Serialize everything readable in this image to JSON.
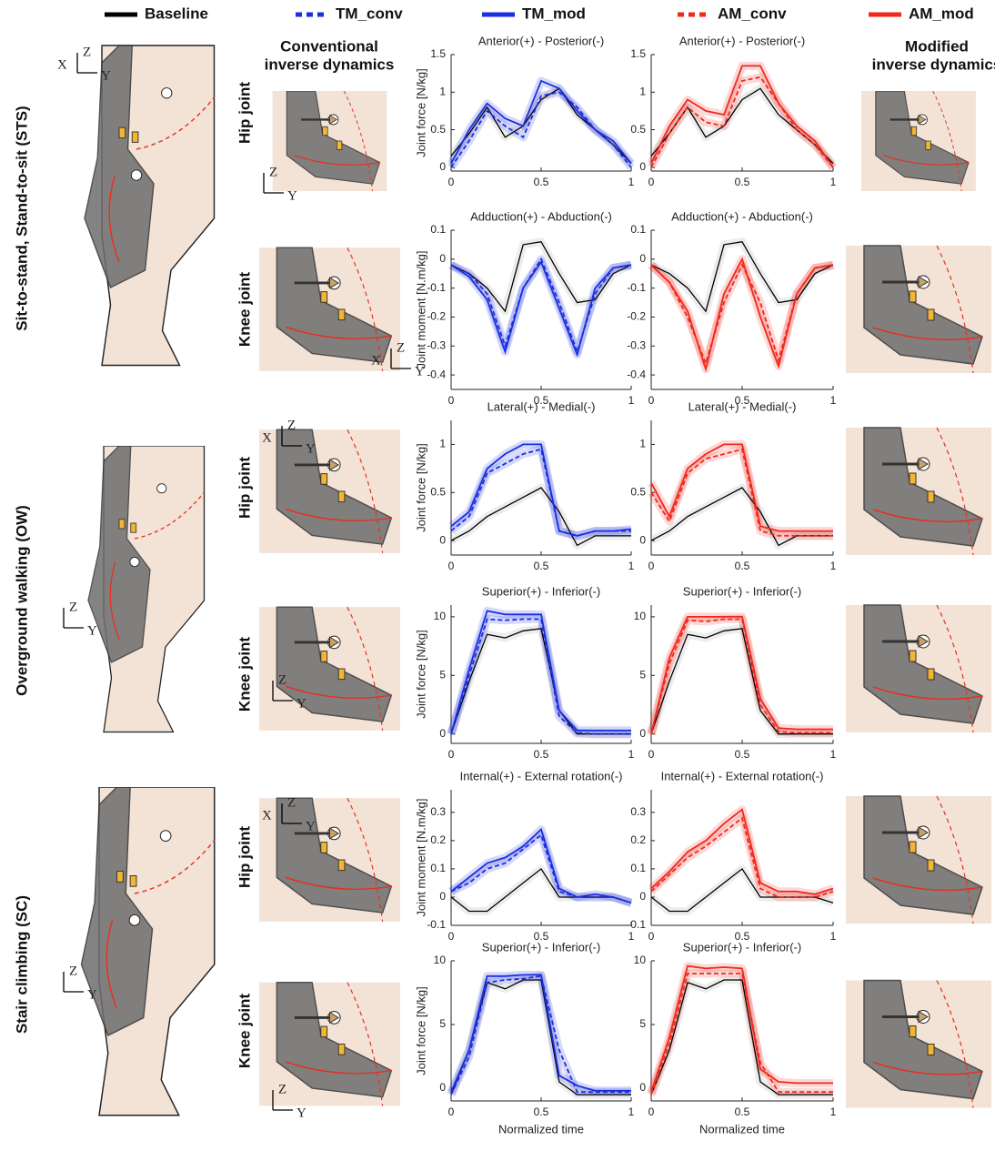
{
  "row_labels": [
    "Sit-to-stand, Stand-to-sit (STS)",
    "Overground walking (OW)",
    "Stair climbing (SC)"
  ],
  "column_headers": {
    "conventional": [
      "Conventional",
      "inverse dynamics"
    ],
    "modified": [
      "Modified",
      "inverse dynamics"
    ]
  },
  "joint_labels": [
    "Hip joint",
    "Knee joint",
    "Hip joint",
    "Knee joint",
    "Hip joint",
    "Knee joint"
  ],
  "axis_letters": {
    "x": "X",
    "y": "Y",
    "z": "Z"
  },
  "chart_data": [
    {
      "type": "line",
      "title": "Anterior(+) - Posterior(-)",
      "ylabel": "Joint force [N/kg]",
      "x": [
        0,
        0.1,
        0.2,
        0.3,
        0.4,
        0.5,
        0.6,
        0.7,
        0.8,
        0.9,
        1
      ],
      "xlim": [
        0,
        1
      ],
      "xticks": [
        0,
        0.5,
        1
      ],
      "ylim": [
        -0.05,
        1.5
      ],
      "yticks": [
        0,
        0.5,
        1,
        1.5
      ],
      "series": [
        {
          "name": "Baseline",
          "color": "#000000",
          "style": "solid",
          "values": [
            0.15,
            0.45,
            0.8,
            0.4,
            0.55,
            0.9,
            1.05,
            0.7,
            0.5,
            0.3,
            0.05
          ]
        },
        {
          "name": "TM_conv",
          "color": "#1a2fe0",
          "style": "dashed",
          "values": [
            0.0,
            0.35,
            0.75,
            0.55,
            0.4,
            0.95,
            1.0,
            0.8,
            0.5,
            0.3,
            0.0
          ]
        },
        {
          "name": "TM_mod",
          "color": "#1a2fe0",
          "style": "solid",
          "values": [
            0.05,
            0.5,
            0.85,
            0.65,
            0.55,
            1.15,
            1.05,
            0.75,
            0.5,
            0.35,
            0.05
          ]
        }
      ]
    },
    {
      "type": "line",
      "title": "Anterior(+) - Posterior(-)",
      "x": [
        0,
        0.1,
        0.2,
        0.3,
        0.4,
        0.5,
        0.6,
        0.7,
        0.8,
        0.9,
        1
      ],
      "xlim": [
        0,
        1
      ],
      "xticks": [
        0,
        0.5,
        1
      ],
      "ylim": [
        -0.05,
        1.5
      ],
      "yticks": [
        0,
        0.5,
        1,
        1.5
      ],
      "series": [
        {
          "name": "Baseline",
          "color": "#000000",
          "style": "solid",
          "values": [
            0.15,
            0.45,
            0.8,
            0.4,
            0.55,
            0.9,
            1.05,
            0.7,
            0.5,
            0.3,
            0.05
          ]
        },
        {
          "name": "AM_conv",
          "color": "#f0281e",
          "style": "dashed",
          "values": [
            0.0,
            0.45,
            0.8,
            0.6,
            0.55,
            1.15,
            1.2,
            0.85,
            0.5,
            0.3,
            0.0
          ]
        },
        {
          "name": "AM_mod",
          "color": "#f0281e",
          "style": "solid",
          "values": [
            0.05,
            0.55,
            0.9,
            0.75,
            0.7,
            1.35,
            1.35,
            0.85,
            0.55,
            0.35,
            0.0
          ]
        }
      ]
    },
    {
      "type": "line",
      "title": "Adduction(+) - Abduction(-)",
      "ylabel": "Joint moment [N.m/kg]",
      "x": [
        0,
        0.1,
        0.2,
        0.3,
        0.4,
        0.5,
        0.6,
        0.7,
        0.8,
        0.9,
        1
      ],
      "xlim": [
        0,
        1
      ],
      "xticks": [
        0,
        0.5,
        1
      ],
      "ylim": [
        -0.45,
        0.1
      ],
      "yticks": [
        0.1,
        0,
        -0.1,
        -0.2,
        -0.3,
        -0.4
      ],
      "series": [
        {
          "name": "Baseline",
          "color": "#000000",
          "style": "solid",
          "values": [
            -0.02,
            -0.05,
            -0.1,
            -0.18,
            0.05,
            0.06,
            -0.05,
            -0.15,
            -0.14,
            -0.05,
            -0.02
          ]
        },
        {
          "name": "TM_conv",
          "color": "#1a2fe0",
          "style": "dashed",
          "values": [
            -0.02,
            -0.05,
            -0.12,
            -0.3,
            -0.1,
            0.0,
            -0.15,
            -0.32,
            -0.12,
            -0.03,
            -0.02
          ]
        },
        {
          "name": "TM_mod",
          "color": "#1a2fe0",
          "style": "solid",
          "values": [
            -0.02,
            -0.06,
            -0.14,
            -0.32,
            -0.1,
            -0.01,
            -0.17,
            -0.33,
            -0.1,
            -0.03,
            -0.02
          ]
        }
      ]
    },
    {
      "type": "line",
      "title": "Adduction(+) - Abduction(-)",
      "x": [
        0,
        0.1,
        0.2,
        0.3,
        0.4,
        0.5,
        0.6,
        0.7,
        0.8,
        0.9,
        1
      ],
      "xlim": [
        0,
        1
      ],
      "xticks": [
        0,
        0.5,
        1
      ],
      "ylim": [
        -0.45,
        0.1
      ],
      "yticks": [
        0.1,
        0,
        -0.1,
        -0.2,
        -0.3,
        -0.4
      ],
      "series": [
        {
          "name": "Baseline",
          "color": "#000000",
          "style": "solid",
          "values": [
            -0.02,
            -0.05,
            -0.1,
            -0.18,
            0.05,
            0.06,
            -0.05,
            -0.15,
            -0.14,
            -0.05,
            -0.02
          ]
        },
        {
          "name": "AM_conv",
          "color": "#f0281e",
          "style": "dashed",
          "values": [
            -0.02,
            -0.08,
            -0.2,
            -0.36,
            -0.15,
            -0.02,
            -0.15,
            -0.35,
            -0.12,
            -0.03,
            -0.02
          ]
        },
        {
          "name": "AM_mod",
          "color": "#f0281e",
          "style": "solid",
          "values": [
            -0.02,
            -0.08,
            -0.18,
            -0.38,
            -0.12,
            0.0,
            -0.2,
            -0.37,
            -0.12,
            -0.03,
            -0.02
          ]
        }
      ]
    },
    {
      "type": "line",
      "title": "Lateral(+) - Medial(-)",
      "ylabel": "Joint force [N/kg]",
      "x": [
        0,
        0.1,
        0.2,
        0.3,
        0.4,
        0.5,
        0.6,
        0.7,
        0.8,
        0.9,
        1
      ],
      "xlim": [
        0,
        1
      ],
      "xticks": [
        0,
        0.5,
        1
      ],
      "ylim": [
        -0.15,
        1.25
      ],
      "yticks": [
        0,
        0.5,
        1
      ],
      "series": [
        {
          "name": "Baseline",
          "color": "#000000",
          "style": "solid",
          "values": [
            0.0,
            0.1,
            0.25,
            0.35,
            0.45,
            0.55,
            0.3,
            -0.05,
            0.05,
            0.05,
            0.05
          ]
        },
        {
          "name": "TM_conv",
          "color": "#1a2fe0",
          "style": "dashed",
          "values": [
            0.1,
            0.25,
            0.7,
            0.8,
            0.9,
            0.95,
            0.1,
            0.05,
            0.1,
            0.1,
            0.1
          ]
        },
        {
          "name": "TM_mod",
          "color": "#1a2fe0",
          "style": "solid",
          "values": [
            0.15,
            0.3,
            0.75,
            0.9,
            1.0,
            1.0,
            0.1,
            0.05,
            0.1,
            0.1,
            0.12
          ]
        }
      ]
    },
    {
      "type": "line",
      "title": "Lateral(+) - Medial(-)",
      "x": [
        0,
        0.1,
        0.2,
        0.3,
        0.4,
        0.5,
        0.6,
        0.7,
        0.8,
        0.9,
        1
      ],
      "xlim": [
        0,
        1
      ],
      "xticks": [
        0,
        0.5,
        1
      ],
      "ylim": [
        -0.15,
        1.25
      ],
      "yticks": [
        0,
        0.5,
        1
      ],
      "series": [
        {
          "name": "Baseline",
          "color": "#000000",
          "style": "solid",
          "values": [
            0.0,
            0.1,
            0.25,
            0.35,
            0.45,
            0.55,
            0.3,
            -0.05,
            0.05,
            0.05,
            0.05
          ]
        },
        {
          "name": "AM_conv",
          "color": "#f0281e",
          "style": "dashed",
          "values": [
            0.5,
            0.2,
            0.7,
            0.85,
            0.9,
            0.95,
            0.1,
            0.05,
            0.05,
            0.05,
            0.05
          ]
        },
        {
          "name": "AM_mod",
          "color": "#f0281e",
          "style": "solid",
          "values": [
            0.6,
            0.25,
            0.75,
            0.9,
            1.0,
            1.0,
            0.15,
            0.1,
            0.1,
            0.1,
            0.1
          ]
        }
      ]
    },
    {
      "type": "line",
      "title": "Superior(+) - Inferior(-)",
      "ylabel": "Joint force [N/kg]",
      "x": [
        0,
        0.1,
        0.2,
        0.3,
        0.4,
        0.5,
        0.6,
        0.7,
        0.8,
        0.9,
        1
      ],
      "xlim": [
        0,
        1
      ],
      "xticks": [
        0,
        0.5,
        1
      ],
      "ylim": [
        -0.8,
        11
      ],
      "yticks": [
        0,
        5,
        10
      ],
      "series": [
        {
          "name": "Baseline",
          "color": "#000000",
          "style": "solid",
          "values": [
            0,
            4.5,
            8.5,
            8.2,
            8.8,
            9.0,
            2,
            0,
            0,
            0,
            0
          ]
        },
        {
          "name": "TM_conv",
          "color": "#1a2fe0",
          "style": "dashed",
          "values": [
            0,
            5,
            9.8,
            9.7,
            9.8,
            9.8,
            1.5,
            0.1,
            0,
            0,
            0
          ]
        },
        {
          "name": "TM_mod",
          "color": "#1a2fe0",
          "style": "solid",
          "values": [
            0,
            5.5,
            10.5,
            10.2,
            10.2,
            10.2,
            2,
            0.3,
            0.3,
            0.3,
            0.3
          ]
        }
      ]
    },
    {
      "type": "line",
      "title": "Superior(+) - Inferior(-)",
      "x": [
        0,
        0.1,
        0.2,
        0.3,
        0.4,
        0.5,
        0.6,
        0.7,
        0.8,
        0.9,
        1
      ],
      "xlim": [
        0,
        1
      ],
      "xticks": [
        0,
        0.5,
        1
      ],
      "ylim": [
        -0.8,
        11
      ],
      "yticks": [
        0,
        5,
        10
      ],
      "series": [
        {
          "name": "Baseline",
          "color": "#000000",
          "style": "solid",
          "values": [
            0,
            4.5,
            8.5,
            8.2,
            8.8,
            9.0,
            2,
            0,
            0,
            0,
            0
          ]
        },
        {
          "name": "AM_conv",
          "color": "#f0281e",
          "style": "dashed",
          "values": [
            0,
            6,
            9.7,
            9.6,
            9.8,
            9.8,
            2.5,
            0.2,
            0.1,
            0.1,
            0.1
          ]
        },
        {
          "name": "AM_mod",
          "color": "#f0281e",
          "style": "solid",
          "values": [
            0,
            6.5,
            10,
            10,
            10,
            10,
            3,
            0.5,
            0.4,
            0.4,
            0.4
          ]
        }
      ]
    },
    {
      "type": "line",
      "title": "Internal(+) - External rotation(-)",
      "ylabel": "Joint moment [N.m/kg]",
      "x": [
        0,
        0.1,
        0.2,
        0.3,
        0.4,
        0.5,
        0.6,
        0.7,
        0.8,
        0.9,
        1
      ],
      "xlim": [
        0,
        1
      ],
      "xticks": [
        0,
        0.5,
        1
      ],
      "ylim": [
        -0.1,
        0.38
      ],
      "yticks": [
        -0.1,
        0,
        0.1,
        0.2,
        0.3
      ],
      "series": [
        {
          "name": "Baseline",
          "color": "#000000",
          "style": "solid",
          "values": [
            0.0,
            -0.05,
            -0.05,
            0.0,
            0.05,
            0.1,
            0.0,
            0.0,
            0.0,
            0.0,
            -0.02
          ]
        },
        {
          "name": "TM_conv",
          "color": "#1a2fe0",
          "style": "dashed",
          "values": [
            0.02,
            0.05,
            0.1,
            0.12,
            0.17,
            0.22,
            0.02,
            0.0,
            0.0,
            0.0,
            -0.02
          ]
        },
        {
          "name": "TM_mod",
          "color": "#1a2fe0",
          "style": "solid",
          "values": [
            0.02,
            0.07,
            0.12,
            0.14,
            0.18,
            0.24,
            0.03,
            0.0,
            0.01,
            0.0,
            -0.02
          ]
        }
      ]
    },
    {
      "type": "line",
      "title": "Internal(+) - External rotation(-)",
      "x": [
        0,
        0.1,
        0.2,
        0.3,
        0.4,
        0.5,
        0.6,
        0.7,
        0.8,
        0.9,
        1
      ],
      "xlim": [
        0,
        1
      ],
      "xticks": [
        0,
        0.5,
        1
      ],
      "ylim": [
        -0.1,
        0.38
      ],
      "yticks": [
        -0.1,
        0,
        0.1,
        0.2,
        0.3
      ],
      "series": [
        {
          "name": "Baseline",
          "color": "#000000",
          "style": "solid",
          "values": [
            0.0,
            -0.05,
            -0.05,
            0.0,
            0.05,
            0.1,
            0.0,
            0.0,
            0.0,
            0.0,
            -0.02
          ]
        },
        {
          "name": "AM_conv",
          "color": "#f0281e",
          "style": "dashed",
          "values": [
            0.02,
            0.08,
            0.14,
            0.18,
            0.23,
            0.28,
            0.03,
            0.0,
            0.0,
            0.0,
            0.02
          ]
        },
        {
          "name": "AM_mod",
          "color": "#f0281e",
          "style": "solid",
          "values": [
            0.03,
            0.09,
            0.16,
            0.2,
            0.26,
            0.31,
            0.05,
            0.02,
            0.02,
            0.01,
            0.03
          ]
        }
      ]
    },
    {
      "type": "line",
      "title": "Superior(+) - Inferior(-)",
      "ylabel": "Joint force [N/kg]",
      "xlabel": "Normalized time",
      "x": [
        0,
        0.1,
        0.2,
        0.3,
        0.4,
        0.5,
        0.6,
        0.7,
        0.8,
        0.9,
        1
      ],
      "xlim": [
        0,
        1
      ],
      "xticks": [
        0,
        0.5,
        1
      ],
      "ylim": [
        -1,
        10
      ],
      "yticks": [
        0,
        5,
        10
      ],
      "series": [
        {
          "name": "Baseline",
          "color": "#000000",
          "style": "solid",
          "values": [
            -0.5,
            3,
            8.3,
            7.8,
            8.5,
            8.5,
            0.5,
            -0.5,
            -0.5,
            -0.5,
            -0.5
          ]
        },
        {
          "name": "TM_conv",
          "color": "#1a2fe0",
          "style": "dashed",
          "values": [
            -0.5,
            2.5,
            8.3,
            8.5,
            8.6,
            8.8,
            3,
            -0.3,
            -0.3,
            -0.3,
            -0.3
          ]
        },
        {
          "name": "TM_mod",
          "color": "#1a2fe0",
          "style": "solid",
          "values": [
            -0.3,
            3,
            8.8,
            8.8,
            8.9,
            8.9,
            1,
            0.2,
            -0.2,
            -0.2,
            -0.2
          ]
        }
      ]
    },
    {
      "type": "line",
      "title": "Superior(+) - Inferior(-)",
      "xlabel": "Normalized time",
      "x": [
        0,
        0.1,
        0.2,
        0.3,
        0.4,
        0.5,
        0.6,
        0.7,
        0.8,
        0.9,
        1
      ],
      "xlim": [
        0,
        1
      ],
      "xticks": [
        0,
        0.5,
        1
      ],
      "ylim": [
        -1,
        10
      ],
      "yticks": [
        0,
        5,
        10
      ],
      "series": [
        {
          "name": "Baseline",
          "color": "#000000",
          "style": "solid",
          "values": [
            -0.5,
            3,
            8.3,
            7.8,
            8.5,
            8.5,
            0.5,
            -0.5,
            -0.5,
            -0.5,
            -0.5
          ]
        },
        {
          "name": "AM_conv",
          "color": "#f0281e",
          "style": "dashed",
          "values": [
            -0.5,
            3.5,
            9,
            9,
            9,
            9,
            2,
            -0.3,
            -0.3,
            -0.3,
            -0.3
          ]
        },
        {
          "name": "AM_mod",
          "color": "#f0281e",
          "style": "solid",
          "values": [
            -0.3,
            4,
            9.6,
            9.4,
            9.5,
            9.4,
            1.5,
            0.5,
            0.4,
            0.4,
            0.4
          ]
        }
      ]
    }
  ]
}
